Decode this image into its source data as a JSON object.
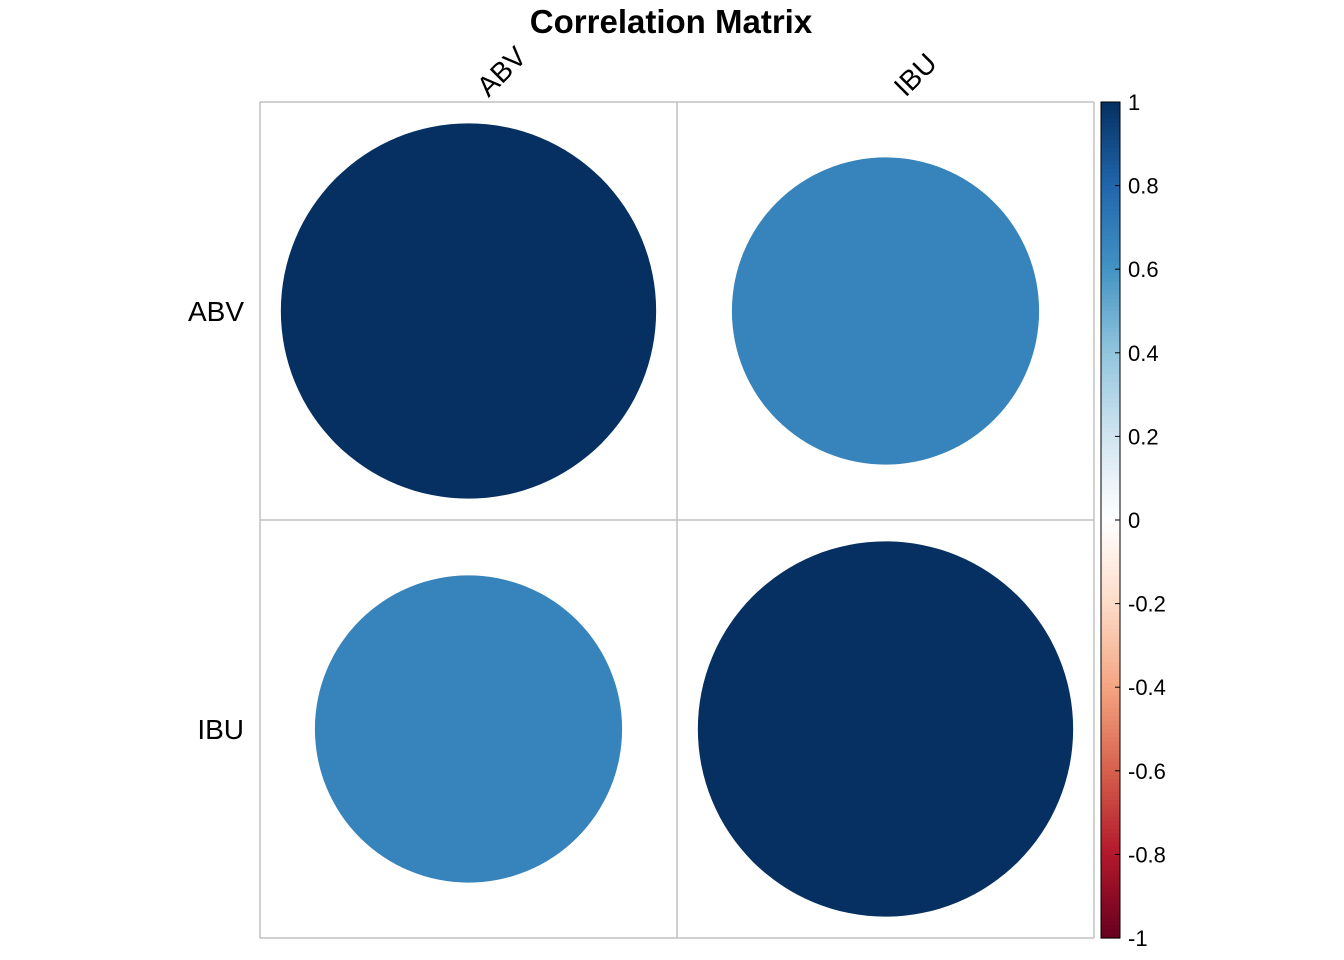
{
  "chart_data": {
    "type": "heatmap",
    "title": "Correlation Matrix",
    "variables": [
      "ABV",
      "IBU"
    ],
    "matrix": [
      [
        1.0,
        0.67
      ],
      [
        0.67,
        1.0
      ]
    ],
    "method": "circle",
    "colorbar": {
      "range": [
        -1,
        1
      ],
      "ticks": [
        "1",
        "0.8",
        "0.6",
        "0.4",
        "0.2",
        "0",
        "-0.2",
        "-0.4",
        "-0.6",
        "-0.8",
        "-1"
      ],
      "placement": "right"
    },
    "colors": {
      "negative_strong": "#67001f",
      "neutral": "#ffffff",
      "positive_strong": "#053061",
      "grid": "#c0c0c0"
    }
  }
}
